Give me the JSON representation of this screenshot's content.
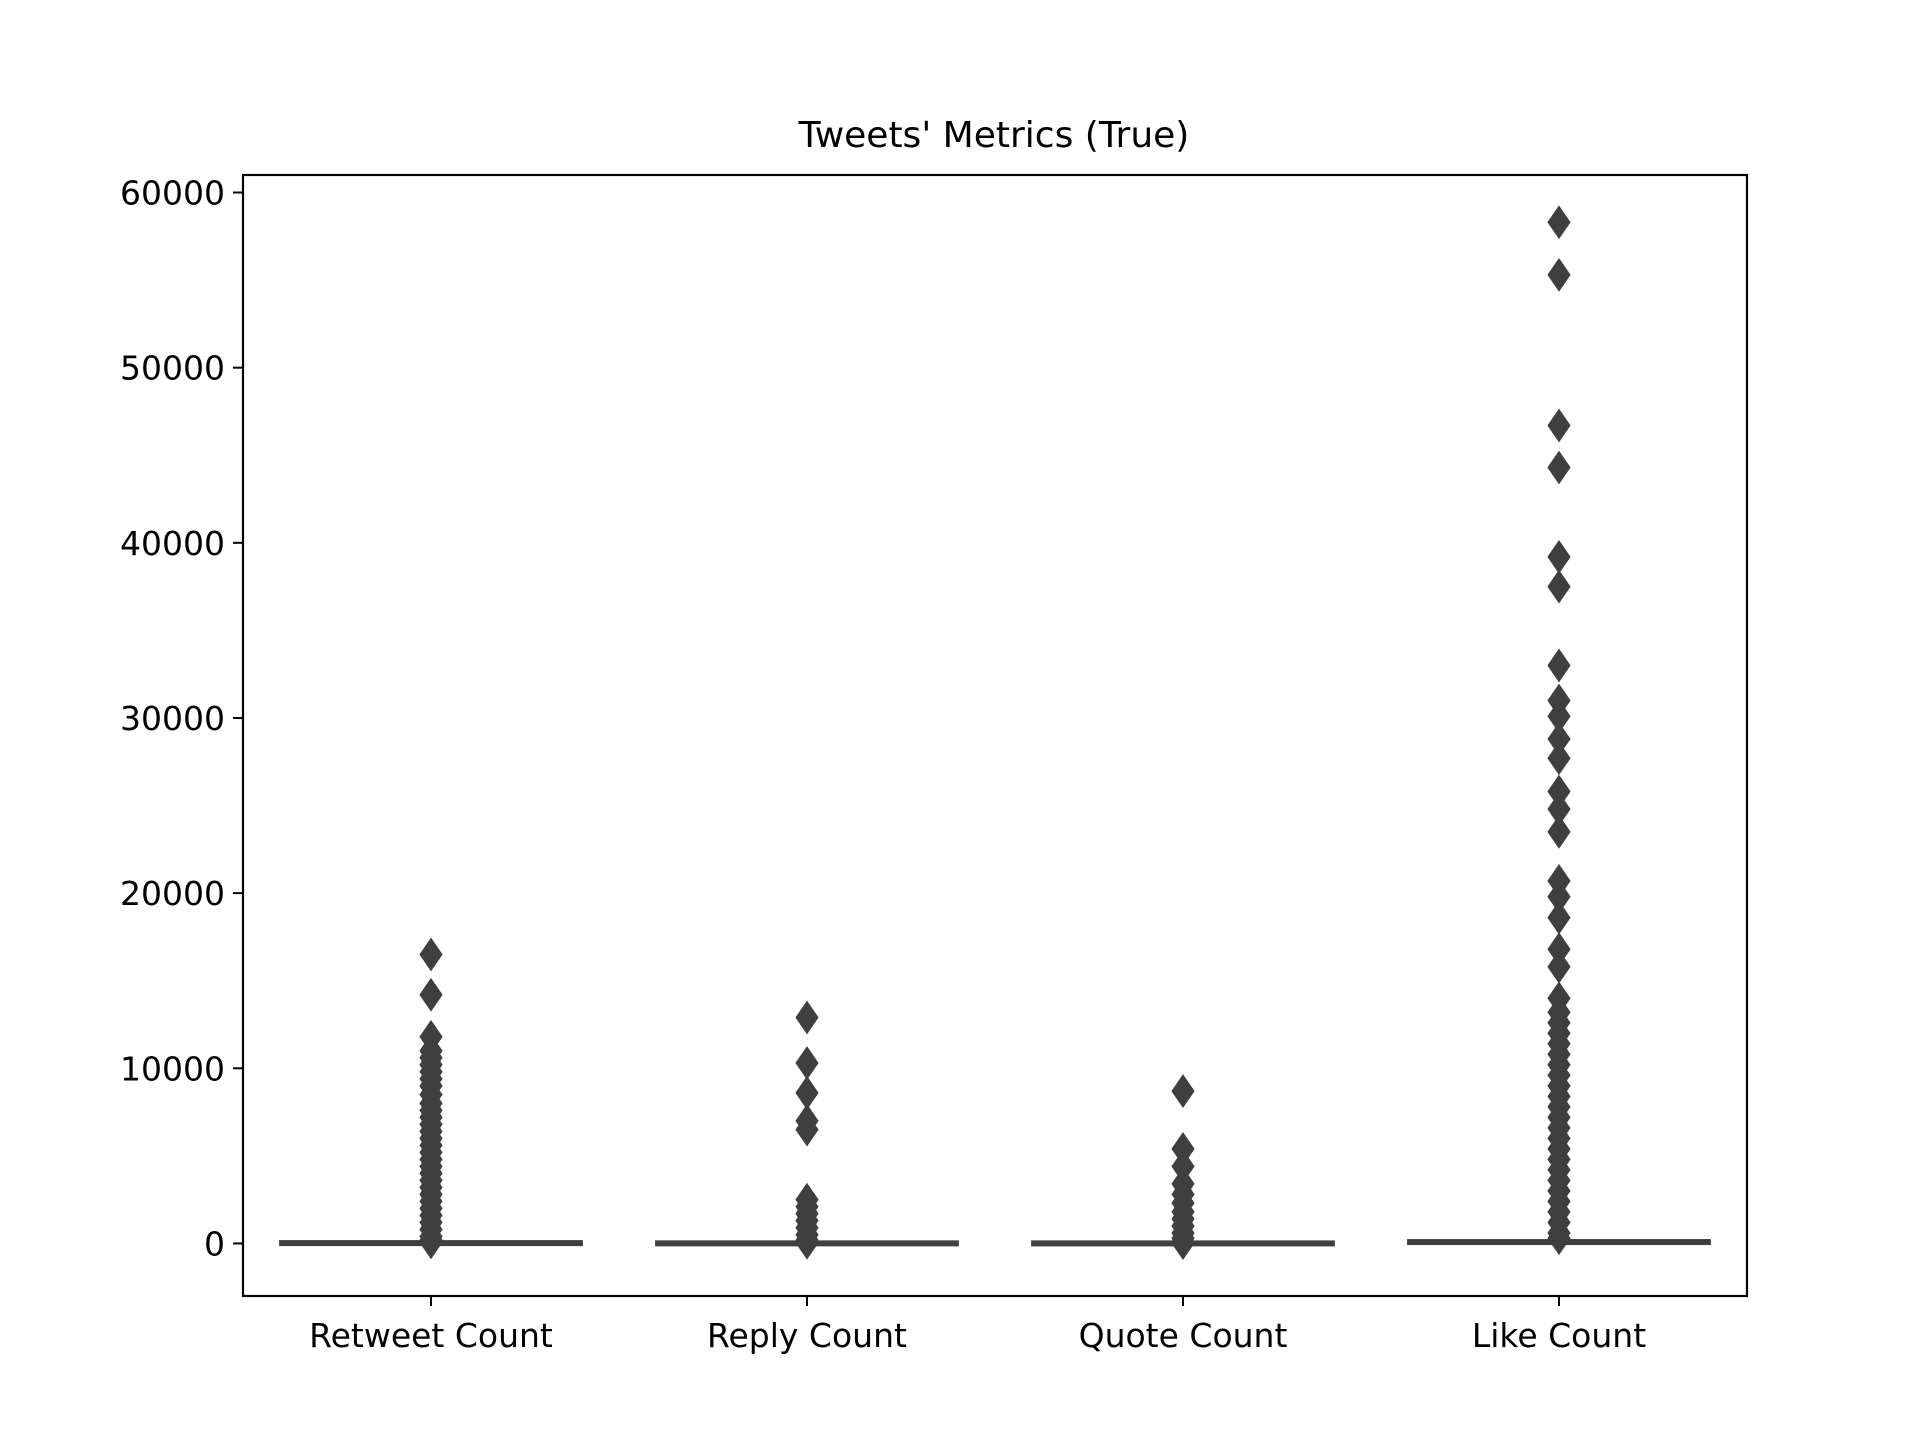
{
  "chart_data": {
    "type": "box",
    "title": "Tweets' Metrics (True)",
    "xlabel": "",
    "ylabel": "",
    "categories": [
      "Retweet Count",
      "Reply Count",
      "Quote Count",
      "Like Count"
    ],
    "yticks": [
      0,
      10000,
      20000,
      30000,
      40000,
      50000,
      60000
    ],
    "ytick_labels": [
      "0",
      "10000",
      "20000",
      "30000",
      "40000",
      "50000",
      "60000"
    ],
    "ylim": [
      -3000,
      61000
    ],
    "grid": false,
    "legend": "none",
    "box_color": "#3f3f3f",
    "boxes": [
      {
        "category": "Retweet Count",
        "q1": 0,
        "median": 0,
        "q3": 20,
        "whisker_low": 0,
        "whisker_high": 40,
        "outliers": [
          16500,
          14200,
          11800,
          11000,
          10600,
          10200,
          9800,
          9400,
          9000,
          8500,
          8000,
          7600,
          7200,
          6800,
          6400,
          6000,
          5600,
          5200,
          4800,
          4400,
          4000,
          3600,
          3200,
          2800,
          2400,
          2000,
          1600,
          1200,
          800,
          400,
          200,
          60
        ]
      },
      {
        "category": "Reply Count",
        "q1": 0,
        "median": 0,
        "q3": 5,
        "whisker_low": 0,
        "whisker_high": 12,
        "outliers": [
          12900,
          10300,
          8600,
          7000,
          6500,
          2500,
          2100,
          1700,
          1300,
          900,
          500,
          200,
          40
        ]
      },
      {
        "category": "Quote Count",
        "q1": 0,
        "median": 0,
        "q3": 3,
        "whisker_low": 0,
        "whisker_high": 8,
        "outliers": [
          8700,
          5400,
          4400,
          3400,
          2800,
          2300,
          1800,
          1400,
          1000,
          600,
          300,
          100,
          20
        ]
      },
      {
        "category": "Like Count",
        "q1": 0,
        "median": 10,
        "q3": 80,
        "whisker_low": 0,
        "whisker_high": 200,
        "outliers": [
          58300,
          55300,
          46700,
          44300,
          39200,
          37500,
          33000,
          31000,
          30100,
          28800,
          27700,
          25800,
          24800,
          23500,
          20700,
          19800,
          18600,
          16800,
          15800,
          14000,
          13200,
          12600,
          12000,
          11400,
          10800,
          10200,
          9600,
          9000,
          8400,
          7800,
          7200,
          6600,
          6000,
          5400,
          4800,
          4200,
          3600,
          3000,
          2400,
          1800,
          1200,
          600,
          300
        ]
      }
    ]
  }
}
